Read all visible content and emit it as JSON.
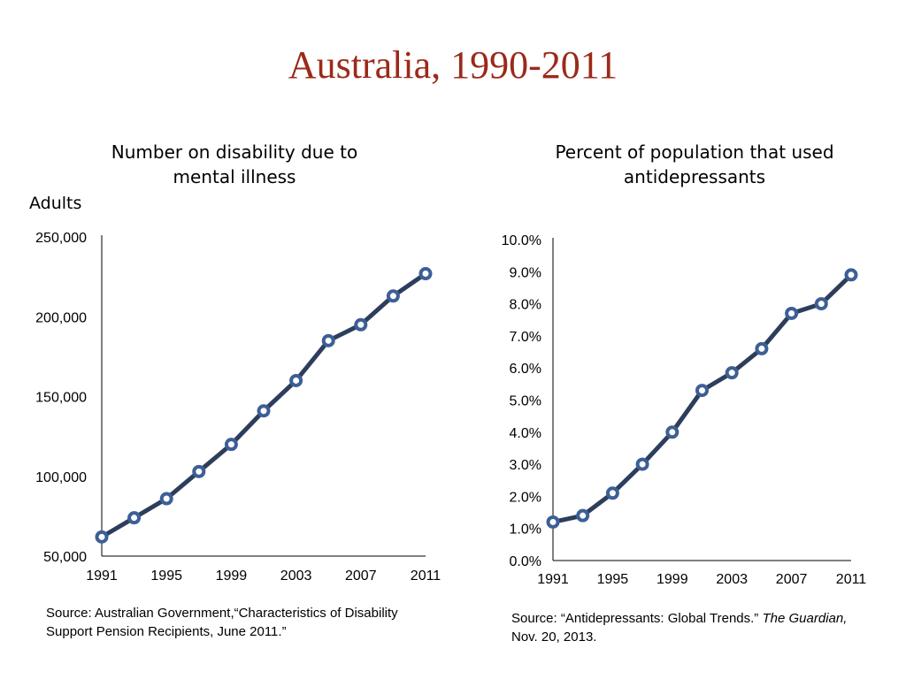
{
  "slide": {
    "title": "Australia, 1990-2011"
  },
  "colors": {
    "title": "#9b2a1a",
    "line": "#2c3e5c",
    "marker": "#3d5f96"
  },
  "chart_data": [
    {
      "type": "line",
      "title_line1": "Number on disability due to",
      "title_line2": "mental illness",
      "units": "Adults",
      "x": [
        1991,
        1993,
        1995,
        1997,
        1999,
        2001,
        2003,
        2005,
        2007,
        2009,
        2011
      ],
      "xticks": [
        "1991",
        "1995",
        "1999",
        "2003",
        "2007",
        "2011"
      ],
      "xlim": [
        1991,
        2011
      ],
      "series": [
        {
          "values": [
            62000,
            74000,
            86000,
            103000,
            120000,
            141000,
            160000,
            185000,
            195000,
            213000,
            227000
          ]
        }
      ],
      "ylim": [
        50000,
        250000
      ],
      "yticks": [
        "50,000",
        "100,000",
        "150,000",
        "200,000",
        "250,000"
      ],
      "ytick_values": [
        50000,
        100000,
        150000,
        200000,
        250000
      ],
      "grid": false
    },
    {
      "type": "line",
      "title_line1": "Percent of population that used",
      "title_line2": "antidepressants",
      "x": [
        1991,
        1993,
        1995,
        1997,
        1999,
        2001,
        2003,
        2005,
        2007,
        2009,
        2011
      ],
      "xticks": [
        "1991",
        "1995",
        "1999",
        "2003",
        "2007",
        "2011"
      ],
      "xlim": [
        1991,
        2011
      ],
      "series": [
        {
          "values": [
            1.2,
            1.4,
            2.1,
            3.0,
            4.0,
            5.3,
            5.85,
            6.6,
            7.7,
            8.0,
            8.9
          ]
        }
      ],
      "ylim": [
        0,
        10
      ],
      "yticks": [
        "0.0%",
        "1.0%",
        "2.0%",
        "3.0%",
        "4.0%",
        "5.0%",
        "6.0%",
        "7.0%",
        "8.0%",
        "9.0%",
        "10.0%"
      ],
      "ytick_values": [
        0,
        1,
        2,
        3,
        4,
        5,
        6,
        7,
        8,
        9,
        10
      ],
      "grid": false
    }
  ],
  "sources": {
    "left_line1": "Source:  Australian Government,“Characteristics of Disability",
    "left_line2": "Support Pension Recipients, June 2011.”",
    "right_prefix": "Source:  “Antidepressants: Global Trends.” ",
    "right_italic": "The Guardian,",
    "right_line2": "Nov. 20, 2013."
  }
}
